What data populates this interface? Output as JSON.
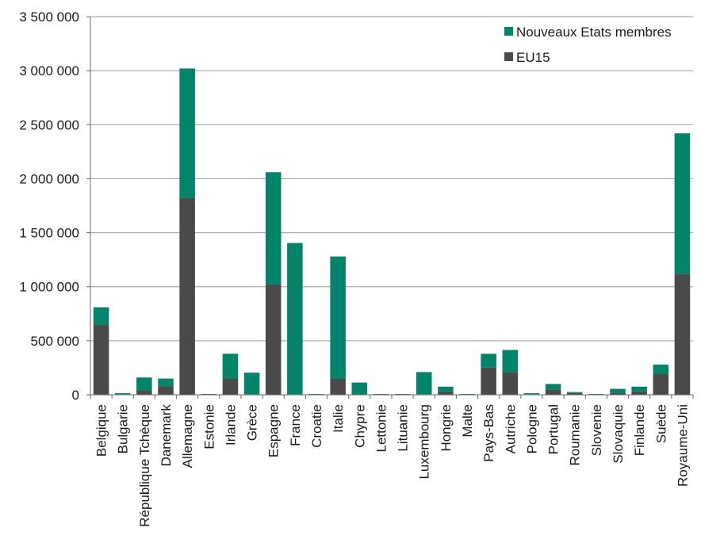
{
  "chart_data": {
    "type": "bar",
    "stacked": true,
    "title": "",
    "xlabel": "",
    "ylabel": "",
    "ylim": [
      0,
      3500000
    ],
    "y_ticks": [
      0,
      500000,
      1000000,
      1500000,
      2000000,
      2500000,
      3000000,
      3500000
    ],
    "y_tick_labels": [
      "0",
      "500 000",
      "1 000 000",
      "1 500 000",
      "2 000 000",
      "2 500 000",
      "3 000 000",
      "3 500 000"
    ],
    "grid": true,
    "legend_position": "top-right",
    "categories": [
      "Belgique",
      "Bulgarie",
      "République Tchèque",
      "Danemark",
      "Allemagne",
      "Estonie",
      "Irlande",
      "Grèce",
      "Espagne",
      "France",
      "Croatie",
      "Italie",
      "Chypre",
      "Lettonie",
      "Lituanie",
      "Luxembourg",
      "Hongrie",
      "Malte",
      "Pays-Bas",
      "Autriche",
      "Pologne",
      "Portugal",
      "Roumanie",
      "Slovenie",
      "Slovaquie",
      "Finlande",
      "Suède",
      "Royaume-Uni"
    ],
    "series": [
      {
        "name": "EU15",
        "color": "#4a4a4a",
        "values": [
          650000,
          5000,
          40000,
          80000,
          1820000,
          2000,
          150000,
          5000,
          1020000,
          5000,
          2000,
          150000,
          3000,
          2000,
          2000,
          5000,
          30000,
          2000,
          250000,
          210000,
          5000,
          50000,
          15000,
          2000,
          15000,
          30000,
          195000,
          1120000
        ]
      },
      {
        "name": "Nouveaux Etats membres",
        "color": "#00846a",
        "values": [
          160000,
          10000,
          120000,
          70000,
          1200000,
          5000,
          230000,
          200000,
          1040000,
          1400000,
          5000,
          1130000,
          110000,
          5000,
          5000,
          205000,
          45000,
          5000,
          130000,
          205000,
          10000,
          50000,
          10000,
          5000,
          40000,
          45000,
          85000,
          1300000
        ]
      }
    ]
  }
}
